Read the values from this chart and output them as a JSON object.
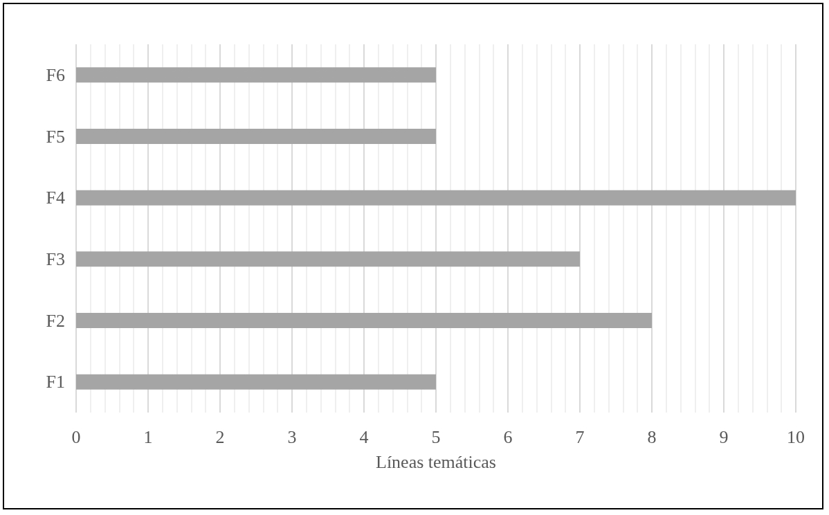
{
  "chart_data": {
    "type": "bar",
    "orientation": "horizontal",
    "xlabel": "Líneas temáticas",
    "categories": [
      "F6",
      "F5",
      "F4",
      "F3",
      "F2",
      "F1"
    ],
    "values": [
      5,
      5,
      10,
      7,
      8,
      5
    ],
    "color": "#a5a5a5",
    "xlim": [
      0,
      10
    ],
    "xticks": [
      0,
      1,
      2,
      3,
      4,
      5,
      6,
      7,
      8,
      9,
      10
    ],
    "grid": "x"
  }
}
